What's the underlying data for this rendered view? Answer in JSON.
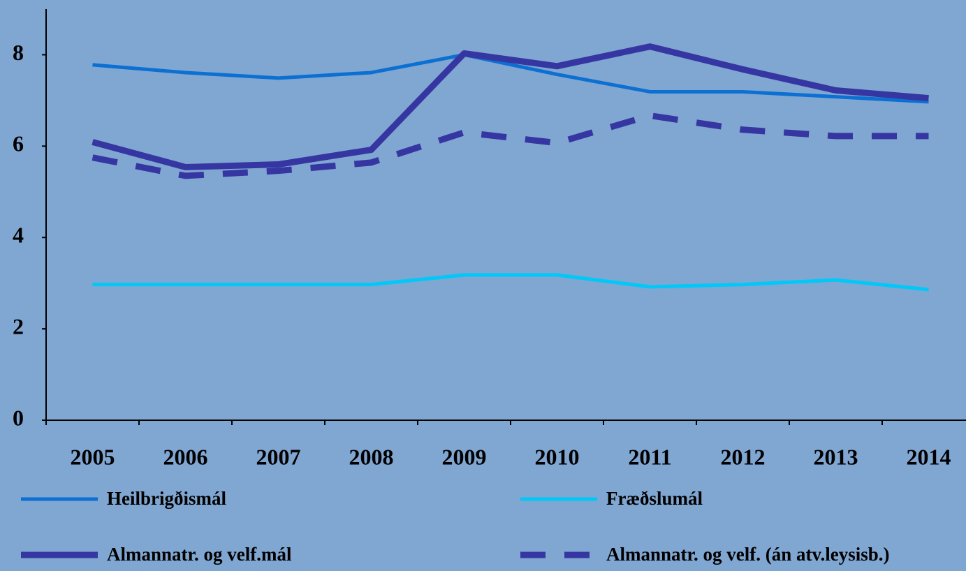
{
  "chart_data": {
    "type": "line",
    "categories": [
      "2005",
      "2006",
      "2007",
      "2008",
      "2009",
      "2010",
      "2011",
      "2012",
      "2013",
      "2014"
    ],
    "series": [
      {
        "name": "Heilbrigðismál",
        "color": "#0c6fd2",
        "width": 5,
        "dash": false,
        "values": [
          7.78,
          7.61,
          7.49,
          7.61,
          8.0,
          7.57,
          7.19,
          7.19,
          7.08,
          6.97
        ]
      },
      {
        "name": "Fræðslumál",
        "color": "#00c8f8",
        "width": 5,
        "dash": false,
        "values": [
          2.97,
          2.97,
          2.97,
          2.97,
          3.18,
          3.18,
          2.92,
          2.97,
          3.07,
          2.86
        ]
      },
      {
        "name": "Almannatr. og velf.mál",
        "color": "#3636a2",
        "width": 9,
        "dash": false,
        "values": [
          6.09,
          5.54,
          5.6,
          5.92,
          8.03,
          7.75,
          8.18,
          7.68,
          7.22,
          7.05
        ]
      },
      {
        "name": "Almannatr. og velf. (án atv.leysisb.)",
        "color": "#3636a2",
        "width": 9,
        "dash": true,
        "values": [
          5.75,
          5.35,
          5.46,
          5.64,
          6.3,
          6.07,
          6.67,
          6.36,
          6.22,
          6.22
        ]
      }
    ],
    "ylim": [
      0,
      9
    ],
    "yticks": [
      0,
      2,
      4,
      6,
      8
    ],
    "grid": false
  }
}
